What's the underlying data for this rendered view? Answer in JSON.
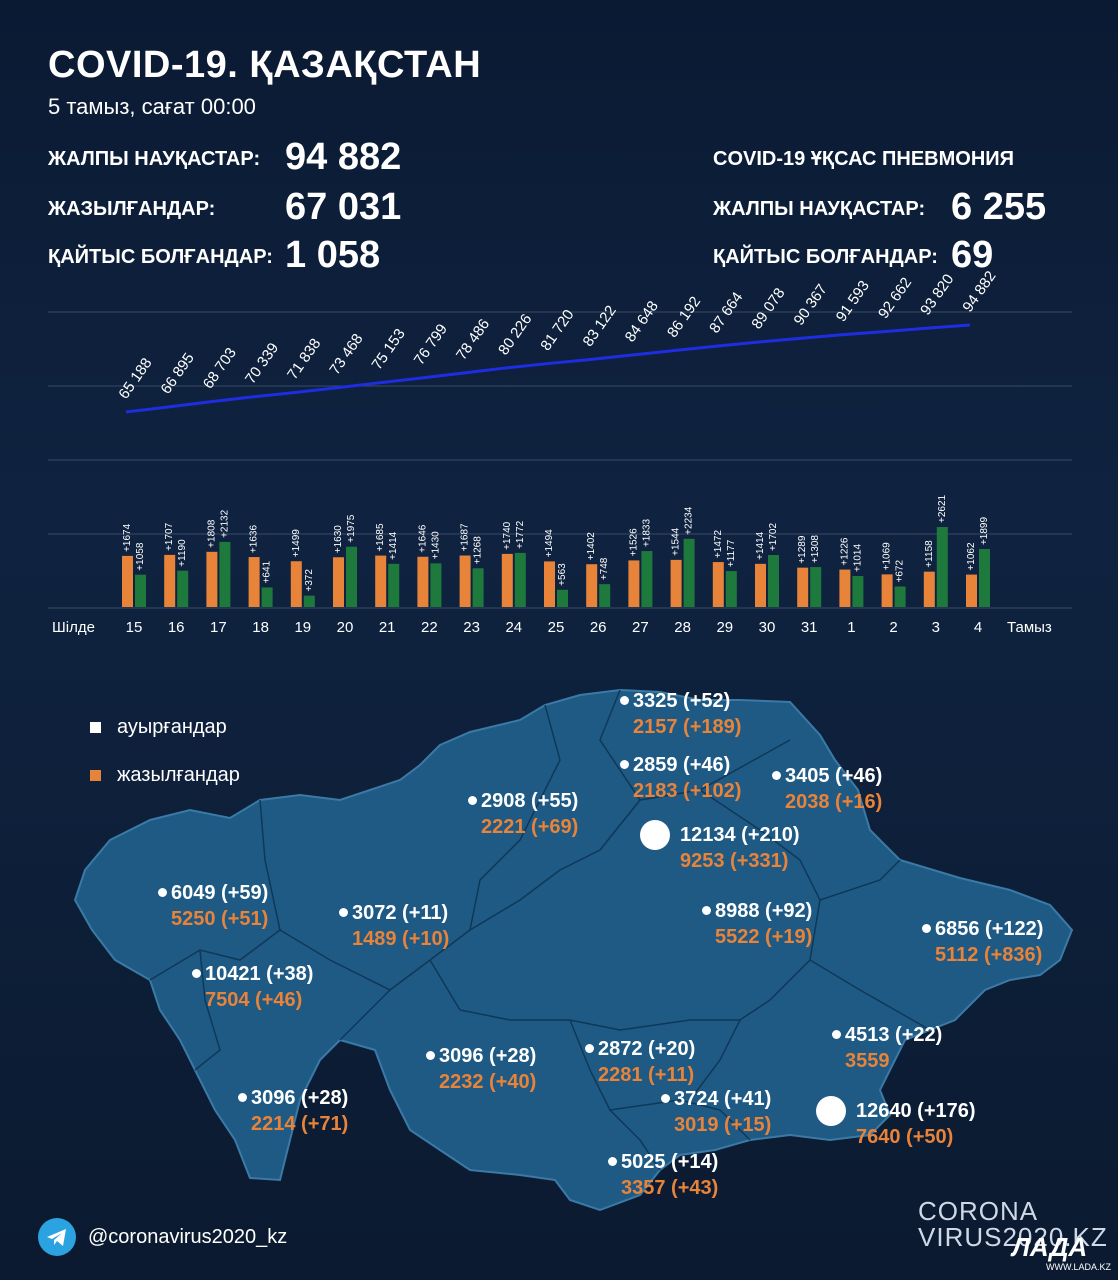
{
  "header": {
    "title": "COVID-19. ҚАЗАҚСТАН",
    "subtitle": "5 тамыз, сағат 00:00"
  },
  "stats_left": [
    {
      "label": "ЖАЛПЫ НАУҚАСТАР:",
      "value": "94 882"
    },
    {
      "label": "ЖАЗЫЛҒАНДАР:",
      "value": "67 031"
    },
    {
      "label": "ҚАЙТЫС БОЛҒАНДАР:",
      "value": "1 058"
    }
  ],
  "stats_right": {
    "heading": "COVID-19 ҰҚСАС ПНЕВМОНИЯ",
    "items": [
      {
        "label": "ЖАЛПЫ НАУҚАСТАР:",
        "value": "6 255"
      },
      {
        "label": "ҚАЙТЫС БОЛҒАНДАР:",
        "value": "69"
      }
    ]
  },
  "chart_data": [
    {
      "type": "line",
      "title": "",
      "x": [
        "15",
        "16",
        "17",
        "18",
        "19",
        "20",
        "21",
        "22",
        "23",
        "24",
        "25",
        "26",
        "27",
        "28",
        "29",
        "30",
        "31",
        "1",
        "2",
        "3",
        "4"
      ],
      "series": [
        {
          "values": [
            65188,
            66895,
            68703,
            70339,
            71838,
            73468,
            75153,
            76799,
            78486,
            80226,
            81720,
            83122,
            84648,
            86192,
            87664,
            89078,
            90367,
            91593,
            92662,
            93820,
            94882
          ],
          "labels": [
            "65 188",
            "66 895",
            "68 703",
            "70 339",
            "71 838",
            "73 468",
            "75 153",
            "76 799",
            "78 486",
            "80 226",
            "81 720",
            "83 122",
            "84 648",
            "86 192",
            "87 664",
            "89 078",
            "90 367",
            "91 593",
            "92 662",
            "93 820",
            "94 882"
          ]
        }
      ],
      "line_color": "#1f2de0"
    },
    {
      "type": "bar",
      "categories": [
        "15",
        "16",
        "17",
        "18",
        "19",
        "20",
        "21",
        "22",
        "23",
        "24",
        "25",
        "26",
        "27",
        "28",
        "29",
        "30",
        "31",
        "1",
        "2",
        "3",
        "4"
      ],
      "month_start_label": "Шілде",
      "month_end_label": "Тамыз",
      "series": [
        {
          "color": "#e8833a",
          "values": [
            1674,
            1707,
            1808,
            1636,
            1499,
            1630,
            1685,
            1646,
            1687,
            1740,
            1494,
            1402,
            1526,
            1544,
            1472,
            1414,
            1289,
            1226,
            1069,
            1158,
            1062
          ]
        },
        {
          "color": "#1e7a3c",
          "values": [
            1058,
            1190,
            2132,
            641,
            372,
            1975,
            1414,
            1430,
            1268,
            1772,
            563,
            748,
            1833,
            2234,
            1177,
            1702,
            1308,
            1014,
            672,
            2621,
            1899
          ]
        }
      ],
      "ylim": [
        0,
        2800
      ]
    }
  ],
  "legend": {
    "sick": {
      "label": "ауырғандар",
      "color": "#ffffff"
    },
    "recovered": {
      "label": "жазылғандар",
      "color": "#e8833a"
    }
  },
  "regions": [
    {
      "cases": "3325 (+52)",
      "recovered": "2157 (+189)"
    },
    {
      "cases": "2859 (+46)",
      "recovered": "2183 (+102)"
    },
    {
      "cases": "3405 (+46)",
      "recovered": "2038 (+16)"
    },
    {
      "cases": "2908 (+55)",
      "recovered": "2221 (+69)"
    },
    {
      "cases": "12134 (+210)",
      "recovered": "9253 (+331)"
    },
    {
      "cases": "6049 (+59)",
      "recovered": "5250 (+51)"
    },
    {
      "cases": "3072 (+11)",
      "recovered": "1489 (+10)"
    },
    {
      "cases": "8988 (+92)",
      "recovered": "5522 (+19)"
    },
    {
      "cases": "6856 (+122)",
      "recovered": "5112 (+836)"
    },
    {
      "cases": "10421 (+38)",
      "recovered": "7504 (+46)"
    },
    {
      "cases": "4513 (+22)",
      "recovered": "3559"
    },
    {
      "cases": "3096 (+28)",
      "recovered": "2232 (+40)"
    },
    {
      "cases": "2872 (+20)",
      "recovered": "2281 (+11)"
    },
    {
      "cases": "3096 (+28)",
      "recovered": "2214 (+71)"
    },
    {
      "cases": "3724 (+41)",
      "recovered": "3019 (+15)"
    },
    {
      "cases": "12640 (+176)",
      "recovered": "7640 (+50)"
    },
    {
      "cases": "5025 (+14)",
      "recovered": "3357 (+43)"
    }
  ],
  "footer": {
    "handle": "@coronavirus2020_kz",
    "brand_line1": "CORONA",
    "brand_line2": "VIRUS2020.KZ",
    "lada": "ЛАДА",
    "lada_url": "WWW.LADA.KZ",
    "telegram_icon": "telegram-icon"
  },
  "colors": {
    "map_fill": "#1f5a85",
    "map_border": "#3b7aa6",
    "background": "#0d1b33"
  }
}
